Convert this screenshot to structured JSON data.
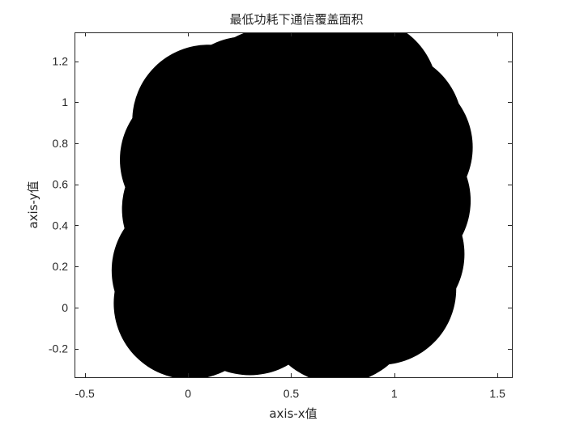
{
  "chart_data": {
    "type": "scatter",
    "title": "最低功耗下通信覆盖面积",
    "xlabel": "axis-x值",
    "ylabel": "axis-y值",
    "xlim": [
      -0.55,
      1.57
    ],
    "ylim": [
      -0.34,
      1.34
    ],
    "xticks": [
      -0.5,
      0,
      0.5,
      1,
      1.5
    ],
    "yticks": [
      -0.2,
      0,
      0.2,
      0.4,
      0.6,
      0.8,
      1,
      1.2
    ],
    "xtick_labels": [
      "-0.5",
      "0",
      "0.5",
      "1",
      "1.5"
    ],
    "ytick_labels": [
      "-0.2",
      "0",
      "0.2",
      "0.4",
      "0.6",
      "0.8",
      "1",
      "1.2"
    ],
    "marker_color": "#000000",
    "coverage_radius": 0.37,
    "points": [
      {
        "x": 0.01,
        "y": 0.02
      },
      {
        "x": 0.0,
        "y": 0.18
      },
      {
        "x": 0.05,
        "y": 0.48
      },
      {
        "x": 0.04,
        "y": 0.72
      },
      {
        "x": 0.1,
        "y": 0.91
      },
      {
        "x": 0.28,
        "y": 0.95
      },
      {
        "x": 0.4,
        "y": 0.99
      },
      {
        "x": 0.66,
        "y": 1.03
      },
      {
        "x": 0.84,
        "y": 1.04
      },
      {
        "x": 0.96,
        "y": 0.88
      },
      {
        "x": 1.01,
        "y": 0.78
      },
      {
        "x": 1.0,
        "y": 0.52
      },
      {
        "x": 0.97,
        "y": 0.26
      },
      {
        "x": 0.93,
        "y": 0.09
      },
      {
        "x": 0.73,
        "y": 0.0
      },
      {
        "x": 0.3,
        "y": 0.04
      },
      {
        "x": 0.55,
        "y": 0.5
      },
      {
        "x": 0.45,
        "y": 0.7
      }
    ]
  }
}
